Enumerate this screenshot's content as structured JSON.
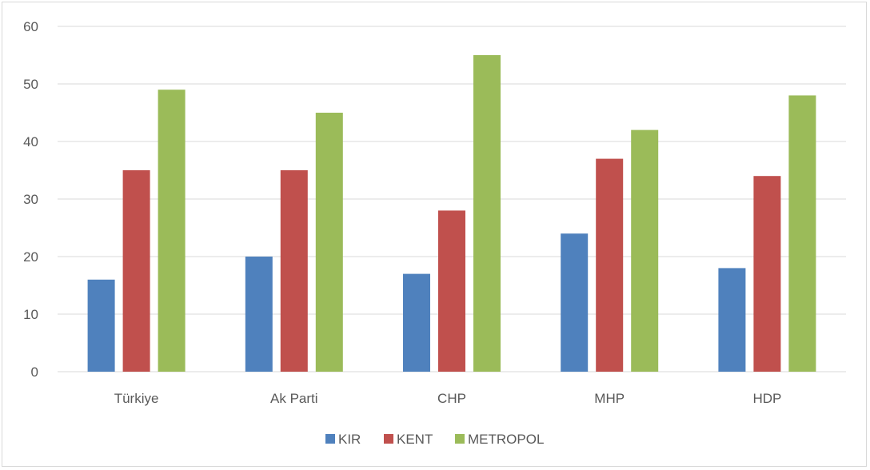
{
  "chart_data": {
    "type": "bar",
    "title": "",
    "xlabel": "",
    "ylabel": "",
    "categories": [
      "Türkiye",
      "Ak Parti",
      "CHP",
      "MHP",
      "HDP"
    ],
    "series": [
      {
        "name": "KIR",
        "color": "#4f81bd",
        "values": [
          16,
          20,
          17,
          24,
          18
        ]
      },
      {
        "name": "KENT",
        "color": "#c0504d",
        "values": [
          35,
          35,
          28,
          37,
          34
        ]
      },
      {
        "name": "METROPOL",
        "color": "#9bbb59",
        "values": [
          49,
          45,
          55,
          42,
          48
        ]
      }
    ],
    "ylim": [
      0,
      60
    ],
    "yticks": [
      0,
      10,
      20,
      30,
      40,
      50,
      60
    ],
    "grid": true,
    "legend_position": "bottom-center"
  }
}
